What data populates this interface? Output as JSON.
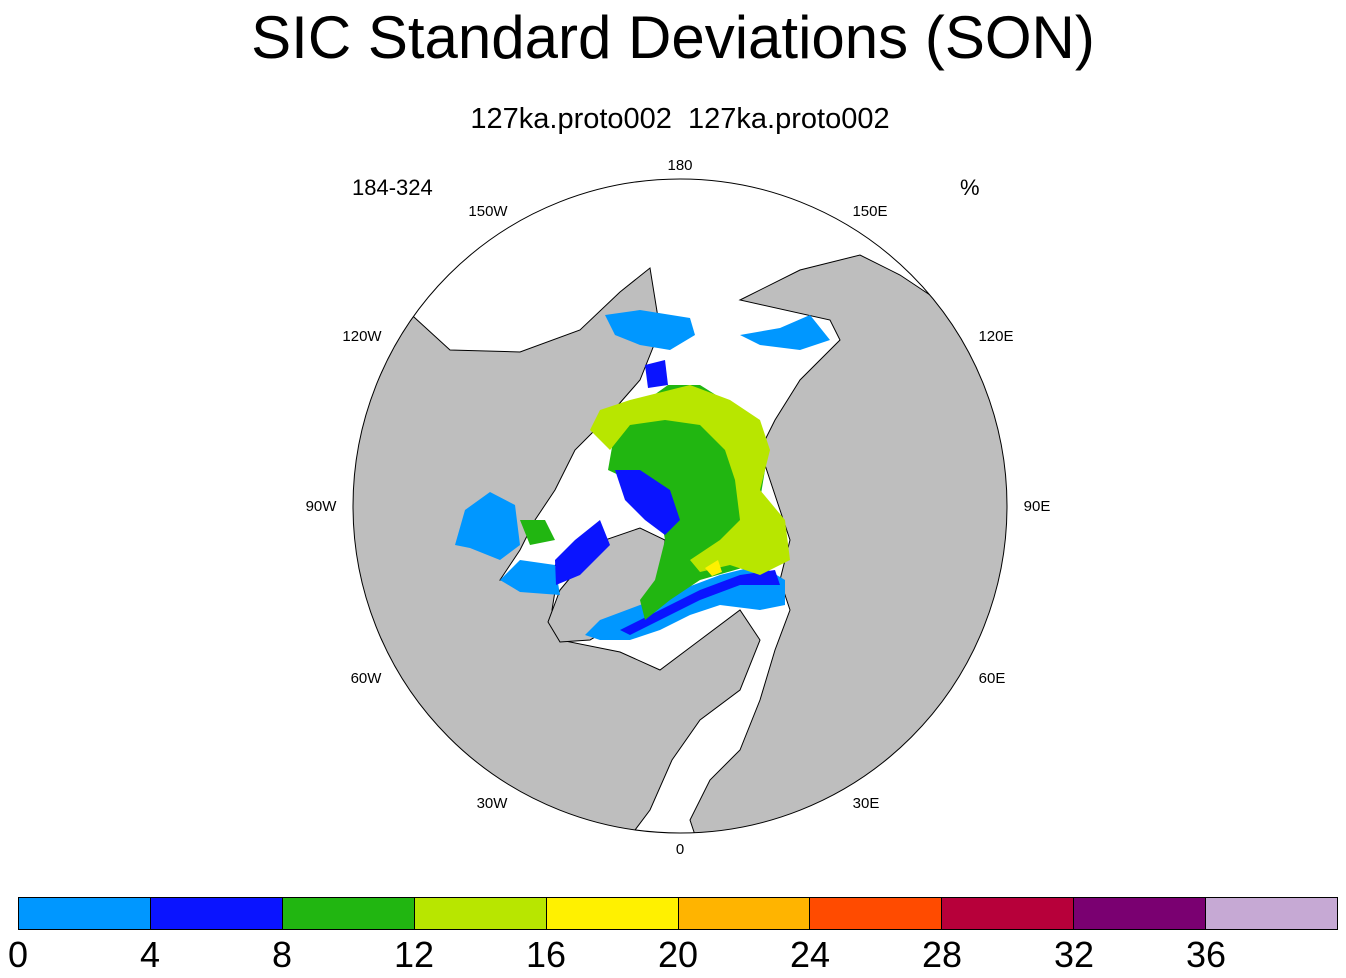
{
  "title": "SIC Standard Deviations (SON)",
  "subtitle": "127ka.proto002  127ka.proto002",
  "left_string": "184-324",
  "right_string": "%",
  "map": {
    "projection": "north-polar-stereographic",
    "land_color": "#bebebe",
    "ocean_color": "#ffffff",
    "longitude_labels": [
      "180",
      "150E",
      "120E",
      "90E",
      "60E",
      "30E",
      "0",
      "30W",
      "60W",
      "90W",
      "120W",
      "150W"
    ]
  },
  "colorbar": {
    "levels": [
      "0",
      "4",
      "8",
      "12",
      "16",
      "20",
      "24",
      "28",
      "32",
      "36"
    ],
    "colors": [
      "#0097ff",
      "#0a14ff",
      "#21b611",
      "#b8e600",
      "#fff100",
      "#ffb400",
      "#ff4b00",
      "#b7003a",
      "#7a0071",
      "#c6a9d4"
    ]
  }
}
